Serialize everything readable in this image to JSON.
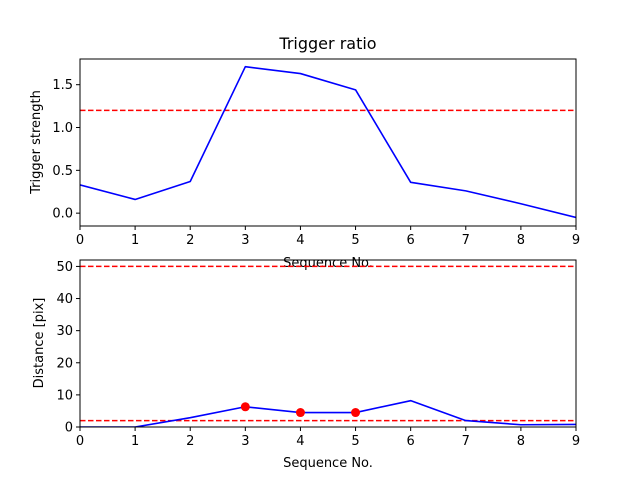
{
  "chart_data": [
    {
      "type": "line",
      "title": "Trigger ratio",
      "xlabel": "Sequence No.",
      "ylabel": "Trigger strength",
      "xlim": [
        0,
        9
      ],
      "ylim": [
        -0.15,
        1.8
      ],
      "xticks": [
        "0",
        "1",
        "2",
        "3",
        "4",
        "5",
        "6",
        "7",
        "8",
        "9"
      ],
      "yticks": [
        "0.0",
        "0.5",
        "1.0",
        "1.5"
      ],
      "grid": false,
      "series": [
        {
          "x": [
            0,
            1,
            2,
            3,
            4,
            5,
            6,
            7,
            8,
            9
          ],
          "values": [
            0.33,
            0.16,
            0.37,
            1.71,
            1.63,
            1.44,
            0.36,
            0.26,
            0.11,
            -0.05
          ],
          "color": "#0000ff",
          "style": "solid"
        }
      ],
      "reference_lines": [
        {
          "y": 1.2,
          "color": "#ff0000",
          "style": "dashed"
        }
      ]
    },
    {
      "type": "line",
      "title": "",
      "xlabel": "Sequence No.",
      "ylabel": "Distance [pix]",
      "xlim": [
        0,
        9
      ],
      "ylim": [
        0,
        52
      ],
      "xticks": [
        "0",
        "1",
        "2",
        "3",
        "4",
        "5",
        "6",
        "7",
        "8",
        "9"
      ],
      "yticks": [
        "0",
        "10",
        "20",
        "30",
        "40",
        "50"
      ],
      "grid": false,
      "series": [
        {
          "x": [
            0,
            1,
            2,
            3,
            4,
            5,
            6,
            7,
            8,
            9
          ],
          "values": [
            0.0,
            0.0,
            2.9,
            6.3,
            4.5,
            4.5,
            8.2,
            2.0,
            0.7,
            0.8
          ],
          "color": "#0000ff",
          "style": "solid"
        }
      ],
      "markers": {
        "x": [
          3,
          4,
          5
        ],
        "values": [
          6.3,
          4.5,
          4.5
        ],
        "color": "#ff0000"
      },
      "reference_lines": [
        {
          "y": 50,
          "color": "#ff0000",
          "style": "dashed"
        },
        {
          "y": 2,
          "color": "#ff0000",
          "style": "dashed"
        }
      ]
    }
  ]
}
